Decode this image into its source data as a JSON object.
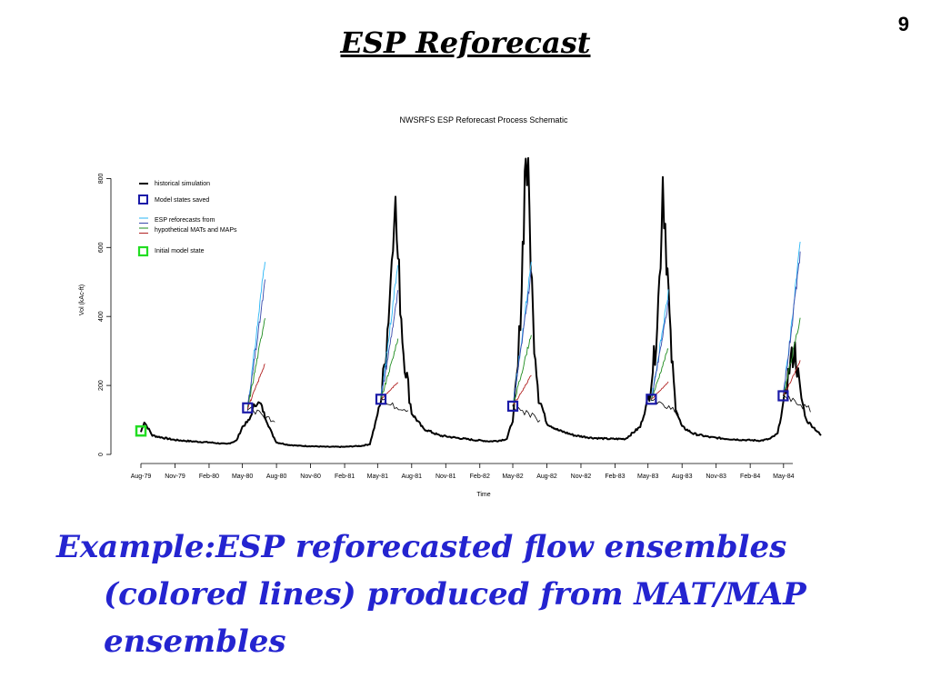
{
  "slide": {
    "number": "9",
    "title": "ESP Reforecast",
    "caption_lines": [
      "Example:ESP reforecasted flow ensembles",
      "(colored lines) produced from MAT/MAP",
      "ensembles"
    ]
  },
  "colors": {
    "historical": "#000000",
    "saved_state": "#1a1aa8",
    "initial_state": "#22dd22",
    "ensemble": [
      "#29b6f6",
      "#3949ab",
      "#1e8c1e",
      "#b22222"
    ],
    "caption": "#2424d0"
  },
  "chart_data": {
    "type": "line",
    "title": "NWSRFS ESP Reforecast Process Schematic",
    "xlabel": "Time",
    "ylabel": "Vol (kAc-ft)",
    "ylim": [
      0,
      830
    ],
    "yticks": [
      0,
      200,
      400,
      600,
      800
    ],
    "xlim": [
      "1979-08-01",
      "1984-08-15"
    ],
    "xticks": [
      "Aug-79",
      "Nov-79",
      "Feb-80",
      "May-80",
      "Aug-80",
      "Nov-80",
      "Feb-81",
      "May-81",
      "Aug-81",
      "Nov-81",
      "Feb-82",
      "May-82",
      "Aug-82",
      "Nov-82",
      "Feb-83",
      "May-83",
      "Aug-83",
      "Nov-83",
      "Feb-84",
      "May-84"
    ],
    "legend": {
      "placement": "top-left",
      "entries": [
        {
          "label": "historical simulation",
          "symbol": "line",
          "color": "#000000"
        },
        {
          "label": "Model states saved",
          "symbol": "square",
          "color": "#1a1aa8"
        },
        {
          "label": "ESP reforecasts from",
          "symbol": "multiline",
          "color": "#29b6f6"
        },
        {
          "label": "hypothetical MATs and MAPs",
          "symbol": "multiline",
          "color": "#b22222"
        },
        {
          "label": "Initial model state",
          "symbol": "square",
          "color": "#22dd22"
        }
      ]
    },
    "series": [
      {
        "role": "historical",
        "x": [
          "1979-08-01",
          "1979-08-10",
          "1979-09-01",
          "1979-10-01",
          "1979-11-01",
          "1979-12-15",
          "1980-02-01",
          "1980-03-20",
          "1980-04-15",
          "1980-05-01",
          "1980-05-20",
          "1980-06-01",
          "1980-06-10",
          "1980-06-20",
          "1980-07-01",
          "1980-07-20",
          "1980-08-01",
          "1980-09-01",
          "1980-10-01",
          "1980-11-01",
          "1980-12-15",
          "1981-02-01",
          "1981-03-20",
          "1981-04-10",
          "1981-04-25",
          "1981-05-10",
          "1981-05-25",
          "1981-06-05",
          "1981-06-15",
          "1981-06-25",
          "1981-07-10",
          "1981-08-01",
          "1981-09-01",
          "1981-10-15",
          "1981-12-01",
          "1982-01-15",
          "1982-03-01",
          "1982-03-25",
          "1982-04-15",
          "1982-05-01",
          "1982-05-15",
          "1982-05-25",
          "1982-06-05",
          "1982-06-15",
          "1982-06-25",
          "1982-07-10",
          "1982-08-01",
          "1982-09-01",
          "1982-10-15",
          "1982-12-01",
          "1983-01-15",
          "1983-03-01",
          "1983-04-10",
          "1983-04-25",
          "1983-05-05",
          "1983-05-20",
          "1983-06-01",
          "1983-06-10",
          "1983-06-20",
          "1983-07-01",
          "1983-07-15",
          "1983-08-01",
          "1983-09-01",
          "1983-10-15",
          "1983-12-01",
          "1984-01-15",
          "1984-03-01",
          "1984-03-25",
          "1984-04-15",
          "1984-05-01",
          "1984-05-20",
          "1984-06-01",
          "1984-06-15",
          "1984-07-01",
          "1984-07-20",
          "1984-08-10"
        ],
        "y": [
          65,
          95,
          55,
          48,
          42,
          38,
          35,
          30,
          40,
          80,
          100,
          140,
          150,
          145,
          110,
          60,
          35,
          28,
          25,
          24,
          22,
          22,
          25,
          30,
          90,
          160,
          320,
          500,
          770,
          560,
          300,
          120,
          75,
          55,
          48,
          42,
          38,
          40,
          45,
          100,
          250,
          500,
          890,
          700,
          380,
          170,
          90,
          70,
          55,
          48,
          45,
          45,
          80,
          135,
          180,
          300,
          500,
          810,
          600,
          320,
          130,
          80,
          60,
          50,
          45,
          42,
          40,
          45,
          60,
          150,
          270,
          300,
          180,
          100,
          80,
          55
        ]
      },
      {
        "role": "saved_state",
        "x": [
          "1980-05-15",
          "1981-05-10",
          "1982-05-01",
          "1983-05-10",
          "1984-04-30"
        ],
        "y": [
          135,
          160,
          140,
          160,
          170
        ]
      },
      {
        "role": "initial_state",
        "x": [
          "1979-08-01"
        ],
        "y": [
          68
        ]
      },
      {
        "role": "ensemble",
        "name": "",
        "start": "1980-05-15",
        "end": "1980-07-01",
        "y0": 135,
        "y1": 570,
        "color": "#29b6f6"
      },
      {
        "role": "ensemble",
        "name": "",
        "start": "1980-05-15",
        "end": "1980-07-01",
        "y0": 135,
        "y1": 500,
        "color": "#3949ab"
      },
      {
        "role": "ensemble",
        "name": "",
        "start": "1980-05-15",
        "end": "1980-07-01",
        "y0": 135,
        "y1": 400,
        "color": "#1e8c1e"
      },
      {
        "role": "ensemble",
        "name": "",
        "start": "1980-05-15",
        "end": "1980-07-01",
        "y0": 135,
        "y1": 265,
        "color": "#b22222"
      },
      {
        "role": "ensemble",
        "name": "",
        "start": "1981-05-10",
        "end": "1981-06-25",
        "y0": 160,
        "y1": 560,
        "color": "#29b6f6"
      },
      {
        "role": "ensemble",
        "name": "",
        "start": "1981-05-10",
        "end": "1981-06-25",
        "y0": 160,
        "y1": 470,
        "color": "#3949ab"
      },
      {
        "role": "ensemble",
        "name": "",
        "start": "1981-05-10",
        "end": "1981-06-25",
        "y0": 160,
        "y1": 335,
        "color": "#1e8c1e"
      },
      {
        "role": "ensemble",
        "name": "",
        "start": "1981-05-10",
        "end": "1981-06-25",
        "y0": 160,
        "y1": 210,
        "color": "#b22222"
      },
      {
        "role": "ensemble",
        "name": "",
        "start": "1982-05-01",
        "end": "1982-06-20",
        "y0": 140,
        "y1": 560,
        "color": "#29b6f6"
      },
      {
        "role": "ensemble",
        "name": "",
        "start": "1982-05-01",
        "end": "1982-06-20",
        "y0": 140,
        "y1": 530,
        "color": "#3949ab"
      },
      {
        "role": "ensemble",
        "name": "",
        "start": "1982-05-01",
        "end": "1982-06-20",
        "y0": 140,
        "y1": 350,
        "color": "#1e8c1e"
      },
      {
        "role": "ensemble",
        "name": "",
        "start": "1982-05-01",
        "end": "1982-06-20",
        "y0": 140,
        "y1": 230,
        "color": "#b22222"
      },
      {
        "role": "ensemble",
        "name": "",
        "start": "1983-05-10",
        "end": "1983-06-25",
        "y0": 160,
        "y1": 470,
        "color": "#29b6f6"
      },
      {
        "role": "ensemble",
        "name": "",
        "start": "1983-05-10",
        "end": "1983-06-25",
        "y0": 160,
        "y1": 440,
        "color": "#3949ab"
      },
      {
        "role": "ensemble",
        "name": "",
        "start": "1983-05-10",
        "end": "1983-06-25",
        "y0": 160,
        "y1": 310,
        "color": "#1e8c1e"
      },
      {
        "role": "ensemble",
        "name": "",
        "start": "1983-05-10",
        "end": "1983-06-25",
        "y0": 160,
        "y1": 210,
        "color": "#b22222"
      },
      {
        "role": "ensemble",
        "name": "",
        "start": "1984-04-30",
        "end": "1984-06-15",
        "y0": 170,
        "y1": 610,
        "color": "#29b6f6"
      },
      {
        "role": "ensemble",
        "name": "",
        "start": "1984-04-30",
        "end": "1984-06-15",
        "y0": 170,
        "y1": 580,
        "color": "#3949ab"
      },
      {
        "role": "ensemble",
        "name": "",
        "start": "1984-04-30",
        "end": "1984-06-15",
        "y0": 170,
        "y1": 395,
        "color": "#1e8c1e"
      },
      {
        "role": "ensemble",
        "name": "",
        "start": "1984-04-30",
        "end": "1984-06-15",
        "y0": 170,
        "y1": 270,
        "color": "#b22222"
      }
    ]
  }
}
